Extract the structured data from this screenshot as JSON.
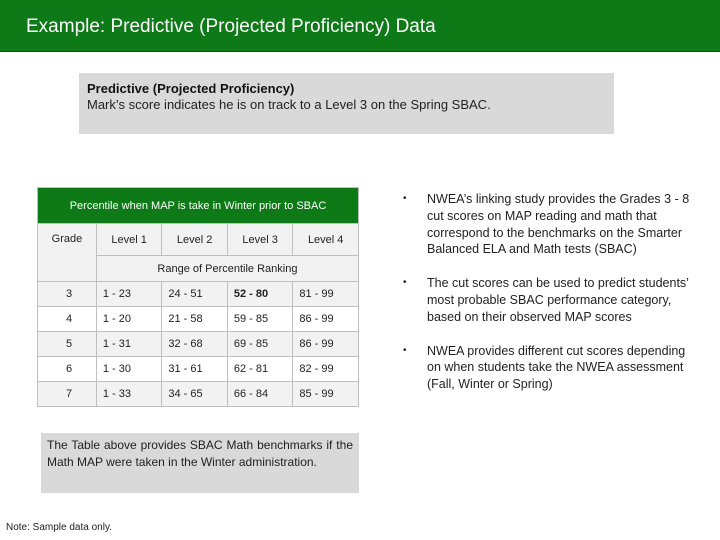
{
  "header": {
    "title": "Example: Predictive (Projected Proficiency) Data"
  },
  "callout": {
    "heading": "Predictive (Projected Proficiency)",
    "text": "Mark’s score indicates he is on track to a Level 3 on the Spring SBAC."
  },
  "table": {
    "caption": "Percentile when MAP is take in Winter prior to SBAC",
    "grade_header": "Grade",
    "level_headers": [
      "Level 1",
      "Level 2",
      "Level 3",
      "Level 4"
    ],
    "range_label": "Range of Percentile Ranking",
    "rows": [
      {
        "grade": "3",
        "l1": "1 - 23",
        "l2": "24 - 51",
        "l3": "52 - 80",
        "l4": "81 - 99"
      },
      {
        "grade": "4",
        "l1": "1 - 20",
        "l2": "21 - 58",
        "l3": "59 - 85",
        "l4": "86 - 99"
      },
      {
        "grade": "5",
        "l1": "1 - 31",
        "l2": "32 - 68",
        "l3": "69 - 85",
        "l4": "86 - 99"
      },
      {
        "grade": "6",
        "l1": "1 - 30",
        "l2": "31 - 61",
        "l3": "62 - 81",
        "l4": "82 - 99"
      },
      {
        "grade": "7",
        "l1": "1 - 33",
        "l2": "34 - 65",
        "l3": "66 - 84",
        "l4": "85 - 99"
      }
    ]
  },
  "note": "The Table above provides SBAC Math benchmarks if the Math MAP were taken in the Winter administration.",
  "footnote": "Note: Sample data only.",
  "bullets": [
    "NWEA’s linking study provides the Grades 3 - 8 cut scores on MAP reading and math that correspond to the benchmarks on the Smarter Balanced ELA and Math tests (SBAC)",
    "The cut scores can be used to predict students’ most probable SBAC performance category, based on their observed MAP scores",
    "NWEA provides different cut scores depending on when students take the NWEA assessment (Fall, Winter or Spring)"
  ],
  "colors": {
    "title_bar": "#0d7a17",
    "callout_bg": "#d9d9d9",
    "table_header_bg": "#0d7a17"
  }
}
